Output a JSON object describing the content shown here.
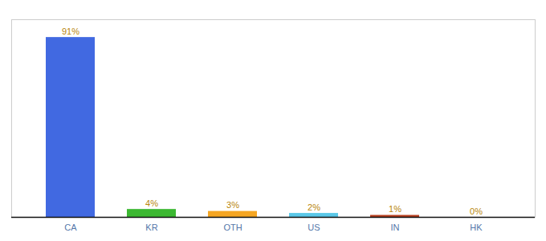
{
  "chart_data": {
    "type": "bar",
    "categories": [
      "CA",
      "KR",
      "OTH",
      "US",
      "IN",
      "HK"
    ],
    "values": [
      91,
      4,
      3,
      2,
      1,
      0
    ],
    "value_labels": [
      "91%",
      "4%",
      "3%",
      "2%",
      "1%",
      "0%"
    ],
    "data_labels": true,
    "colors": [
      "#4169e1",
      "#3cb832",
      "#f5a623",
      "#5bc8e8",
      "#b94020",
      "#aaaaaa"
    ],
    "ylim": [
      0,
      100
    ],
    "tick_labels": "x"
  }
}
